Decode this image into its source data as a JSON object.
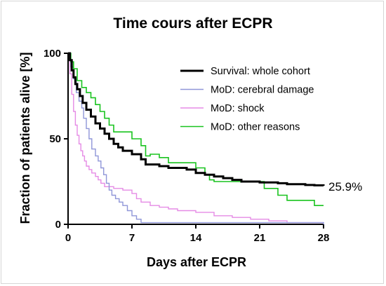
{
  "chart_data": {
    "type": "line",
    "step": true,
    "title": "Time cours after ECPR",
    "xlabel": "Days after ECPR",
    "ylabel": "Fraction of patients alive [%]",
    "xlim": [
      0,
      28
    ],
    "ylim": [
      0,
      100
    ],
    "xticks": [
      "0",
      "7",
      "14",
      "21",
      "28"
    ],
    "yticks": [
      "0",
      "50",
      "100"
    ],
    "grid": false,
    "legend_position": "top-right",
    "annotation": "25.9%",
    "series": [
      {
        "name": "Survival: whole cohort",
        "color": "#000000",
        "points": [
          [
            0,
            100
          ],
          [
            0.2,
            96
          ],
          [
            0.4,
            90
          ],
          [
            0.6,
            86
          ],
          [
            0.8,
            82
          ],
          [
            1.0,
            79
          ],
          [
            1.3,
            75
          ],
          [
            1.6,
            71
          ],
          [
            2.0,
            67
          ],
          [
            2.5,
            63
          ],
          [
            3.0,
            59
          ],
          [
            3.5,
            56
          ],
          [
            4.0,
            53
          ],
          [
            4.5,
            50
          ],
          [
            5.0,
            47
          ],
          [
            5.5,
            45
          ],
          [
            6.0,
            43
          ],
          [
            7.0,
            41
          ],
          [
            8.0,
            38
          ],
          [
            8.5,
            35
          ],
          [
            10,
            34
          ],
          [
            11,
            33
          ],
          [
            13,
            32
          ],
          [
            14,
            30
          ],
          [
            15,
            29
          ],
          [
            16,
            28
          ],
          [
            17,
            27
          ],
          [
            18,
            26
          ],
          [
            19,
            25
          ],
          [
            21,
            24.5
          ],
          [
            23,
            24
          ],
          [
            24,
            23.5
          ],
          [
            26,
            23
          ],
          [
            27,
            22.8
          ],
          [
            28,
            22.5
          ]
        ]
      },
      {
        "name": "MoD: cerebral damage",
        "color": "#8f96d8",
        "points": [
          [
            0,
            100
          ],
          [
            0.3,
            92
          ],
          [
            0.6,
            85
          ],
          [
            0.9,
            77
          ],
          [
            1.2,
            72
          ],
          [
            1.5,
            68
          ],
          [
            1.7,
            62
          ],
          [
            2.0,
            56
          ],
          [
            2.3,
            50
          ],
          [
            2.6,
            44
          ],
          [
            3.0,
            40
          ],
          [
            3.3,
            37
          ],
          [
            3.6,
            33
          ],
          [
            3.9,
            29
          ],
          [
            4.2,
            24
          ],
          [
            4.5,
            20
          ],
          [
            4.8,
            17
          ],
          [
            5.2,
            15
          ],
          [
            5.6,
            13
          ],
          [
            6.0,
            11
          ],
          [
            6.5,
            8
          ],
          [
            7.0,
            5
          ],
          [
            7.5,
            3
          ],
          [
            8.0,
            1
          ],
          [
            28,
            0
          ]
        ]
      },
      {
        "name": "MoD: shock",
        "color": "#e58be5",
        "points": [
          [
            0,
            100
          ],
          [
            0.2,
            88
          ],
          [
            0.4,
            76
          ],
          [
            0.6,
            66
          ],
          [
            0.8,
            58
          ],
          [
            1.0,
            52
          ],
          [
            1.2,
            47
          ],
          [
            1.4,
            43
          ],
          [
            1.6,
            40
          ],
          [
            1.8,
            37
          ],
          [
            2.0,
            34
          ],
          [
            2.3,
            32
          ],
          [
            2.6,
            30
          ],
          [
            3.0,
            28
          ],
          [
            3.3,
            26
          ],
          [
            3.6,
            24
          ],
          [
            4.0,
            22
          ],
          [
            5.0,
            21
          ],
          [
            6.0,
            20
          ],
          [
            7.0,
            18
          ],
          [
            7.5,
            15
          ],
          [
            8.0,
            13
          ],
          [
            9.0,
            11
          ],
          [
            10,
            10
          ],
          [
            11,
            9
          ],
          [
            12,
            8
          ],
          [
            14,
            7
          ],
          [
            16,
            5
          ],
          [
            18,
            4
          ],
          [
            20,
            3
          ],
          [
            22,
            2
          ],
          [
            24,
            1
          ],
          [
            28,
            1
          ]
        ]
      },
      {
        "name": "MoD: other reasons",
        "color": "#19c31f",
        "points": [
          [
            0,
            100
          ],
          [
            0.3,
            95
          ],
          [
            0.6,
            91
          ],
          [
            1.0,
            84
          ],
          [
            1.5,
            80
          ],
          [
            2.0,
            77
          ],
          [
            2.5,
            74
          ],
          [
            3.0,
            70
          ],
          [
            3.5,
            66
          ],
          [
            4.0,
            62
          ],
          [
            4.5,
            58
          ],
          [
            5.0,
            54
          ],
          [
            7.0,
            50
          ],
          [
            8.0,
            46
          ],
          [
            8.5,
            40
          ],
          [
            9.0,
            41
          ],
          [
            10,
            39
          ],
          [
            11,
            36
          ],
          [
            14,
            33
          ],
          [
            15,
            29
          ],
          [
            15.5,
            26
          ],
          [
            16,
            25
          ],
          [
            21,
            25
          ],
          [
            21.5,
            21
          ],
          [
            23,
            17
          ],
          [
            24,
            14
          ],
          [
            27,
            11
          ],
          [
            28,
            11
          ]
        ]
      }
    ]
  }
}
